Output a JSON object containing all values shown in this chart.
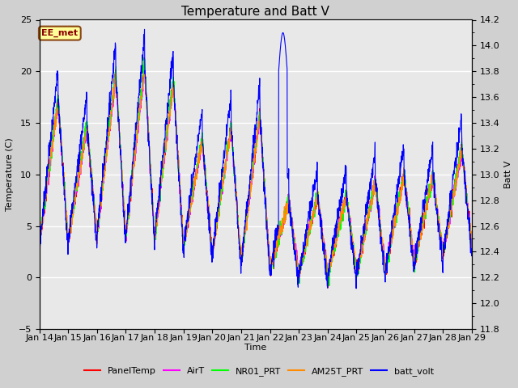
{
  "title": "Temperature and Batt V",
  "xlabel": "Time",
  "ylabel_left": "Temperature (C)",
  "ylabel_right": "Batt V",
  "ylim_left": [
    -5,
    25
  ],
  "ylim_right": [
    11.8,
    14.2
  ],
  "annotation_text": "EE_met",
  "annotation_color": "#8B0000",
  "annotation_bg": "#FFFF99",
  "annotation_border": "#8B4513",
  "x_tick_labels": [
    "Jan 14",
    "Jan 15",
    "Jan 16",
    "Jan 17",
    "Jan 18",
    "Jan 19",
    "Jan 20",
    "Jan 21",
    "Jan 22",
    "Jan 23",
    "Jan 24",
    "Jan 25",
    "Jan 26",
    "Jan 27",
    "Jan 28",
    "Jan 29"
  ],
  "legend_entries": [
    "PanelTemp",
    "AirT",
    "NR01_PRT",
    "AM25T_PRT",
    "batt_volt"
  ],
  "line_colors": [
    "#FF0000",
    "#FF00FF",
    "#00FF00",
    "#FF8C00",
    "#0000FF"
  ],
  "plot_bg_color": "#E8E8E8",
  "title_fontsize": 11,
  "axis_fontsize": 8,
  "tick_fontsize": 8
}
